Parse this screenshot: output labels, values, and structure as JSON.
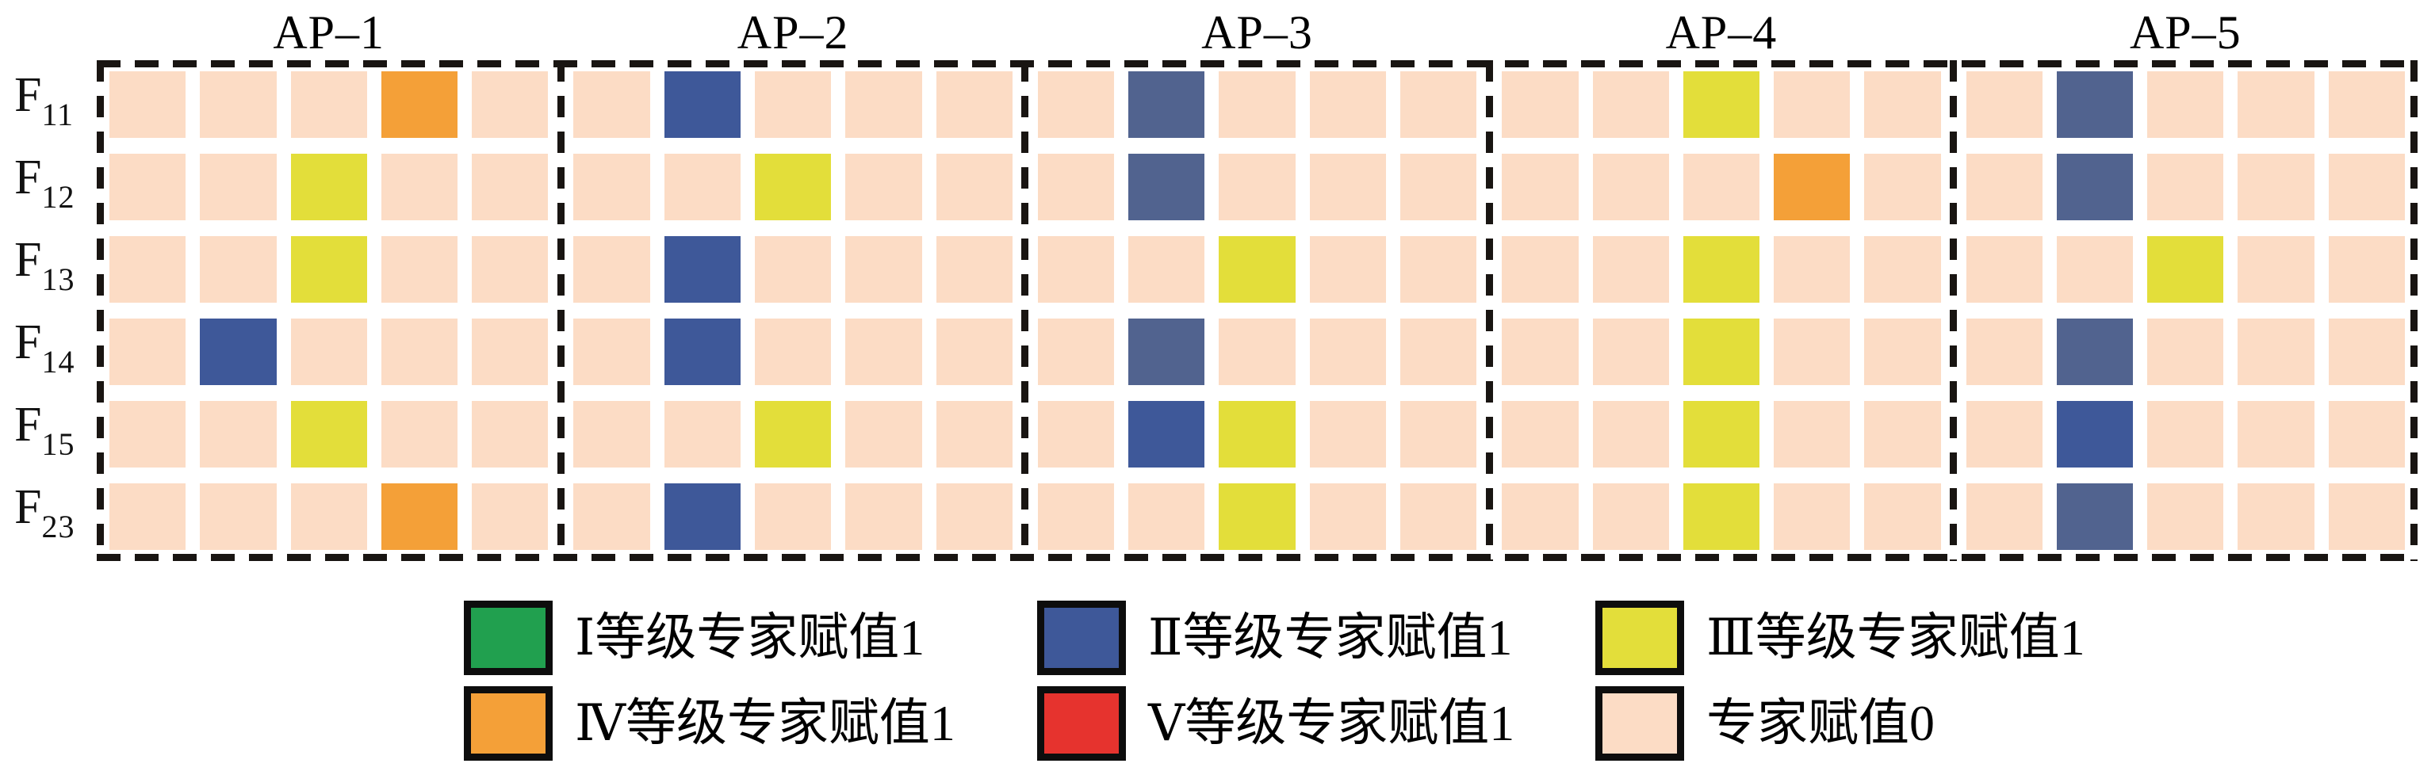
{
  "figure": {
    "panel_titles": [
      "AP–1",
      "AP–2",
      "AP–3",
      "AP–4",
      "AP–5"
    ],
    "row_labels": [
      {
        "base": "F",
        "sub": "11"
      },
      {
        "base": "F",
        "sub": "12"
      },
      {
        "base": "F",
        "sub": "13"
      },
      {
        "base": "F",
        "sub": "14"
      },
      {
        "base": "F",
        "sub": "15"
      },
      {
        "base": "F",
        "sub": "23"
      }
    ],
    "columns_per_panel": 5
  },
  "colors": {
    "grade_I": "#21a04f",
    "grade_II": "#3e5899",
    "grade_II_light": "#51638f",
    "grade_III": "#e3de3a",
    "grade_IV": "#f4a038",
    "grade_V": "#e6332e",
    "value_zero": "#fcdcc5",
    "dash_border": "#191512",
    "swatch_border": "#0d0d0d"
  },
  "cells": {
    "AP-1": [
      [
        "0",
        "0",
        "0",
        "IV",
        "0"
      ],
      [
        "0",
        "0",
        "III",
        "0",
        "0"
      ],
      [
        "0",
        "0",
        "III",
        "0",
        "0"
      ],
      [
        "0",
        "II",
        "0",
        "0",
        "0"
      ],
      [
        "0",
        "0",
        "III",
        "0",
        "0"
      ],
      [
        "0",
        "0",
        "0",
        "IV",
        "0"
      ]
    ],
    "AP-2": [
      [
        "0",
        "II",
        "0",
        "0",
        "0"
      ],
      [
        "0",
        "0",
        "III",
        "0",
        "0"
      ],
      [
        "0",
        "II",
        "0",
        "0",
        "0"
      ],
      [
        "0",
        "II",
        "0",
        "0",
        "0"
      ],
      [
        "0",
        "0",
        "III",
        "0",
        "0"
      ],
      [
        "0",
        "II",
        "0",
        "0",
        "0"
      ]
    ],
    "AP-3": [
      [
        "0",
        "II_light",
        "0",
        "0",
        "0"
      ],
      [
        "0",
        "II_light",
        "0",
        "0",
        "0"
      ],
      [
        "0",
        "0",
        "III",
        "0",
        "0"
      ],
      [
        "0",
        "II_light",
        "0",
        "0",
        "0"
      ],
      [
        "0",
        "II",
        "III",
        "0",
        "0"
      ],
      [
        "0",
        "0",
        "III",
        "0",
        "0"
      ]
    ],
    "AP-4": [
      [
        "0",
        "0",
        "III",
        "0",
        "0"
      ],
      [
        "0",
        "0",
        "0",
        "IV",
        "0"
      ],
      [
        "0",
        "0",
        "III",
        "0",
        "0"
      ],
      [
        "0",
        "0",
        "III",
        "0",
        "0"
      ],
      [
        "0",
        "0",
        "III",
        "0",
        "0"
      ],
      [
        "0",
        "0",
        "III",
        "0",
        "0"
      ]
    ],
    "AP-5": [
      [
        "0",
        "II_light",
        "0",
        "0",
        "0"
      ],
      [
        "0",
        "II_light",
        "0",
        "0",
        "0"
      ],
      [
        "0",
        "0",
        "III",
        "0",
        "0"
      ],
      [
        "0",
        "II_light",
        "0",
        "0",
        "0"
      ],
      [
        "0",
        "II",
        "0",
        "0",
        "0"
      ],
      [
        "0",
        "II_light",
        "0",
        "0",
        "0"
      ]
    ]
  },
  "legend": {
    "rows": [
      [
        {
          "key": "grade_I",
          "label": "Ⅰ等级专家赋值1"
        },
        {
          "key": "grade_II",
          "label": "Ⅱ等级专家赋值1"
        },
        {
          "key": "grade_III",
          "label": "Ⅲ等级专家赋值1"
        }
      ],
      [
        {
          "key": "grade_IV",
          "label": "Ⅳ等级专家赋值1"
        },
        {
          "key": "grade_V",
          "label": "Ⅴ等级专家赋值1"
        },
        {
          "key": "value_zero",
          "label": "专家赋值0"
        }
      ]
    ]
  },
  "chart_data": {
    "type": "heatmap",
    "title": "",
    "panels": [
      "AP-1",
      "AP-2",
      "AP-3",
      "AP-4",
      "AP-5"
    ],
    "rows": [
      "F11",
      "F12",
      "F13",
      "F14",
      "F15",
      "F23"
    ],
    "columns_per_panel": 5,
    "default_value": 0,
    "legend_entries": [
      "Ⅰ等级专家赋值1",
      "Ⅱ等级专家赋值1",
      "Ⅲ等级专家赋值1",
      "Ⅳ等级专家赋值1",
      "Ⅴ等级专家赋值1",
      "专家赋值0"
    ],
    "marked_cells": [
      {
        "panel": "AP-1",
        "row": "F11",
        "column": 4,
        "grade": "IV",
        "value": 1
      },
      {
        "panel": "AP-1",
        "row": "F12",
        "column": 3,
        "grade": "III",
        "value": 1
      },
      {
        "panel": "AP-1",
        "row": "F13",
        "column": 3,
        "grade": "III",
        "value": 1
      },
      {
        "panel": "AP-1",
        "row": "F14",
        "column": 2,
        "grade": "II",
        "value": 1
      },
      {
        "panel": "AP-1",
        "row": "F15",
        "column": 3,
        "grade": "III",
        "value": 1
      },
      {
        "panel": "AP-1",
        "row": "F23",
        "column": 4,
        "grade": "IV",
        "value": 1
      },
      {
        "panel": "AP-2",
        "row": "F11",
        "column": 2,
        "grade": "II",
        "value": 1
      },
      {
        "panel": "AP-2",
        "row": "F12",
        "column": 3,
        "grade": "III",
        "value": 1
      },
      {
        "panel": "AP-2",
        "row": "F13",
        "column": 2,
        "grade": "II",
        "value": 1
      },
      {
        "panel": "AP-2",
        "row": "F14",
        "column": 2,
        "grade": "II",
        "value": 1
      },
      {
        "panel": "AP-2",
        "row": "F15",
        "column": 3,
        "grade": "III",
        "value": 1
      },
      {
        "panel": "AP-2",
        "row": "F23",
        "column": 2,
        "grade": "II",
        "value": 1
      },
      {
        "panel": "AP-3",
        "row": "F11",
        "column": 2,
        "grade": "II",
        "value": 1
      },
      {
        "panel": "AP-3",
        "row": "F12",
        "column": 2,
        "grade": "II",
        "value": 1
      },
      {
        "panel": "AP-3",
        "row": "F13",
        "column": 3,
        "grade": "III",
        "value": 1
      },
      {
        "panel": "AP-3",
        "row": "F14",
        "column": 2,
        "grade": "II",
        "value": 1
      },
      {
        "panel": "AP-3",
        "row": "F15",
        "column": 2,
        "grade": "II",
        "value": 1
      },
      {
        "panel": "AP-3",
        "row": "F15",
        "column": 3,
        "grade": "III",
        "value": 1
      },
      {
        "panel": "AP-3",
        "row": "F23",
        "column": 3,
        "grade": "III",
        "value": 1
      },
      {
        "panel": "AP-4",
        "row": "F11",
        "column": 3,
        "grade": "III",
        "value": 1
      },
      {
        "panel": "AP-4",
        "row": "F12",
        "column": 4,
        "grade": "IV",
        "value": 1
      },
      {
        "panel": "AP-4",
        "row": "F13",
        "column": 3,
        "grade": "III",
        "value": 1
      },
      {
        "panel": "AP-4",
        "row": "F14",
        "column": 3,
        "grade": "III",
        "value": 1
      },
      {
        "panel": "AP-4",
        "row": "F15",
        "column": 3,
        "grade": "III",
        "value": 1
      },
      {
        "panel": "AP-4",
        "row": "F23",
        "column": 3,
        "grade": "III",
        "value": 1
      },
      {
        "panel": "AP-5",
        "row": "F11",
        "column": 2,
        "grade": "II",
        "value": 1
      },
      {
        "panel": "AP-5",
        "row": "F12",
        "column": 2,
        "grade": "II",
        "value": 1
      },
      {
        "panel": "AP-5",
        "row": "F13",
        "column": 3,
        "grade": "III",
        "value": 1
      },
      {
        "panel": "AP-5",
        "row": "F14",
        "column": 2,
        "grade": "II",
        "value": 1
      },
      {
        "panel": "AP-5",
        "row": "F15",
        "column": 2,
        "grade": "II",
        "value": 1
      },
      {
        "panel": "AP-5",
        "row": "F23",
        "column": 2,
        "grade": "II",
        "value": 1
      }
    ]
  }
}
